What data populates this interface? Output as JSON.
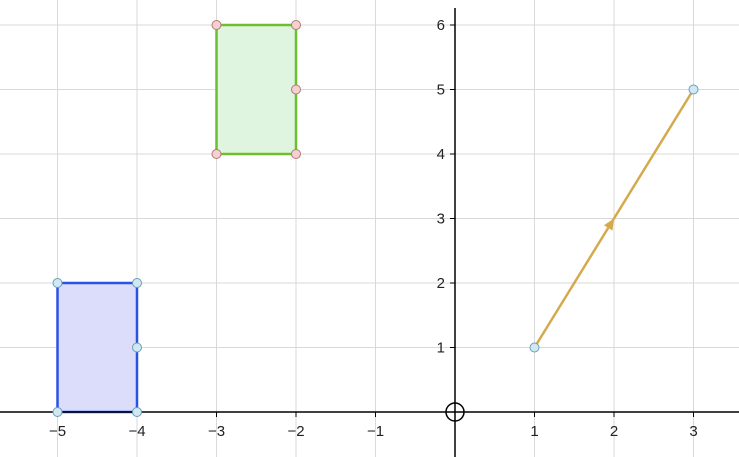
{
  "chart_data": {
    "type": "coordinate-plane",
    "xlim": [
      -5.7,
      3.6
    ],
    "ylim": [
      -0.7,
      6.3
    ],
    "grid": true,
    "x_ticks": [
      {
        "value": -5,
        "label": "−5"
      },
      {
        "value": -4,
        "label": "−4"
      },
      {
        "value": -3,
        "label": "−3"
      },
      {
        "value": -2,
        "label": "−2"
      },
      {
        "value": -1,
        "label": "−1"
      },
      {
        "value": 1,
        "label": "1"
      },
      {
        "value": 2,
        "label": "2"
      },
      {
        "value": 3,
        "label": "3"
      }
    ],
    "y_ticks": [
      {
        "value": 1,
        "label": "1"
      },
      {
        "value": 2,
        "label": "2"
      },
      {
        "value": 3,
        "label": "3"
      },
      {
        "value": 4,
        "label": "4"
      },
      {
        "value": 5,
        "label": "5"
      },
      {
        "value": 6,
        "label": "6"
      }
    ],
    "shapes": [
      {
        "name": "blue-rectangle",
        "kind": "polygon",
        "vertices": [
          [
            -5,
            0
          ],
          [
            -4,
            0
          ],
          [
            -4,
            2
          ],
          [
            -5,
            2
          ]
        ],
        "points": [
          [
            -5,
            0
          ],
          [
            -4,
            0
          ],
          [
            -4,
            1
          ],
          [
            -4,
            2
          ],
          [
            -5,
            2
          ]
        ],
        "stroke": "#2a52e6",
        "fill": "#dcdcfb",
        "point_fill": "#cfe8f3",
        "point_stroke": "#6a9fb5"
      },
      {
        "name": "green-rectangle",
        "kind": "polygon",
        "vertices": [
          [
            -3,
            4
          ],
          [
            -2,
            4
          ],
          [
            -2,
            6
          ],
          [
            -3,
            6
          ]
        ],
        "points": [
          [
            -3,
            4
          ],
          [
            -2,
            4
          ],
          [
            -2,
            5
          ],
          [
            -2,
            6
          ],
          [
            -3,
            6
          ]
        ],
        "stroke": "#6cc02f",
        "fill": "#e0f5df",
        "point_fill": "#f6cfd0",
        "point_stroke": "#b07a7a"
      }
    ],
    "vector": {
      "name": "orange-vector",
      "from": [
        1,
        1
      ],
      "to": [
        3,
        5
      ],
      "arrow_at": [
        2,
        3
      ],
      "stroke": "#d4aa4d",
      "point_fill": "#cfe8f3",
      "point_stroke": "#6a9fb5"
    },
    "origin_marker": {
      "at": [
        0,
        0
      ]
    },
    "colors": {
      "grid": "#d9d9d9",
      "axis": "#000000"
    }
  }
}
